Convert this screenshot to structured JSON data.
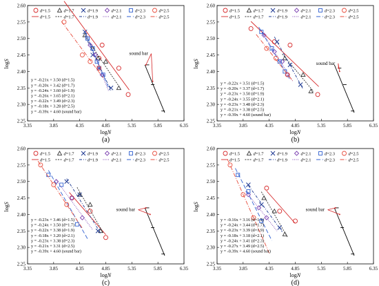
{
  "series_styles": [
    {
      "name": "d=1.5",
      "color": "#d62728",
      "marker": "circle",
      "line_dash": "none"
    },
    {
      "name": "d=1.7",
      "color": "#333333",
      "marker": "triangle",
      "line_dash": "2,1.5"
    },
    {
      "name": "d=1.9",
      "color": "#1f3a93",
      "marker": "x",
      "line_dash": "4,2,1,2"
    },
    {
      "name": "d=2.1",
      "color": "#7b3fb0",
      "marker": "diamond",
      "line_dash": "1,1.5"
    },
    {
      "name": "d=2.3",
      "color": "#3060d0",
      "marker": "square",
      "line_dash": "6,3"
    },
    {
      "name": "d=2.5",
      "color": "#e74c3c",
      "marker": "circle",
      "line_dash": "6,2,1,2"
    }
  ],
  "sound_bar": {
    "color": "#000000",
    "label": "sound bar"
  },
  "legend_marker_labels": [
    "d=1.5",
    "d=1.7",
    "d=1.9",
    "d=2.1",
    "d=2.3",
    "d=2.5"
  ],
  "legend_line_labels": [
    "d=1.5",
    "d=1.7",
    "d=1.9",
    "d=2.1",
    "d=2.3",
    "d=2.5"
  ],
  "chart_data": [
    {
      "type": "scatter",
      "panel_label": "(a)",
      "xlabel": "logN",
      "ylabel": "logS",
      "xlim": [
        3.35,
        6.35
      ],
      "ylim": [
        2.25,
        2.6
      ],
      "xticks": [
        "3.35",
        "3.85",
        "4.35",
        "4.85",
        "5.35",
        "5.85",
        "6.35"
      ],
      "yticks": [
        "2.25",
        "2.30",
        "2.35",
        "2.40",
        "2.45",
        "2.50",
        "2.55",
        "2.60"
      ],
      "equations": [
        "y = -0.21x + 3.50 (d=1.5)",
        "y = -0.20x + 3.42 (d=1.7)",
        "y = -0.24x + 3.60 (d=1.9)",
        "y = -0.26x + 3.65 (d=2.1)",
        "y = -0.22x + 3.49 (d=2.3)",
        "y = -0.18x + 3.28 (d=2.5)",
        "y = -0.39x + 4.60 (sound bar)"
      ],
      "series": [
        {
          "name": "d=1.5",
          "points": [
            [
              4.78,
              2.48
            ],
            [
              4.72,
              2.44
            ],
            [
              5.1,
              2.41
            ],
            [
              5.28,
              2.33
            ]
          ],
          "fit": [
            4.05,
            5.3
          ]
        },
        {
          "name": "d=1.7",
          "points": [
            [
              4.45,
              2.51
            ],
            [
              4.6,
              2.47
            ],
            [
              4.7,
              2.44
            ],
            [
              4.85,
              2.43
            ],
            [
              5.1,
              2.35
            ]
          ],
          "fit": [
            4.45,
            5.1
          ]
        },
        {
          "name": "d=1.9",
          "points": [
            [
              4.45,
              2.52
            ],
            [
              4.6,
              2.45
            ],
            [
              4.72,
              2.41
            ],
            [
              4.95,
              2.35
            ]
          ],
          "fit": [
            4.45,
            4.95
          ]
        },
        {
          "name": "d=2.1",
          "points": [
            [
              4.55,
              2.48
            ],
            [
              4.65,
              2.45
            ],
            [
              4.72,
              2.41
            ],
            [
              4.78,
              2.39
            ]
          ],
          "fit": [
            4.45,
            4.9
          ]
        },
        {
          "name": "d=2.3",
          "points": [
            [
              4.5,
              2.5
            ],
            [
              4.6,
              2.47
            ],
            [
              4.68,
              2.43
            ],
            [
              4.8,
              2.39
            ]
          ],
          "fit": [
            4.45,
            4.9
          ]
        },
        {
          "name": "d=2.5",
          "points": [
            [
              4.05,
              2.55
            ],
            [
              4.4,
              2.45
            ],
            [
              4.55,
              2.43
            ],
            [
              4.72,
              2.41
            ]
          ],
          "fit": [
            4.0,
            4.8
          ]
        }
      ],
      "sound_bar_points": [
        [
          5.65,
          2.42
        ],
        [
          5.75,
          2.36
        ],
        [
          5.95,
          2.28
        ]
      ],
      "sound_bar_label_at": [
        5.3,
        2.45
      ],
      "sound_bar_arrow_to": [
        [
          5.62,
          2.42
        ],
        [
          5.75,
          2.37
        ]
      ],
      "sound_bar_fit": [
        5.6,
        5.98
      ]
    },
    {
      "type": "scatter",
      "panel_label": "(b)",
      "xlabel": "logN",
      "ylabel": "logS",
      "xlim": [
        3.35,
        6.35
      ],
      "ylim": [
        2.25,
        2.6
      ],
      "xticks": [
        "3.35",
        "3.85",
        "4.35",
        "4.85",
        "5.35",
        "5.85",
        "6.35"
      ],
      "yticks": [
        "2.25",
        "2.30",
        "2.35",
        "2.40",
        "2.45",
        "2.50",
        "2.55",
        "2.60"
      ],
      "equations": [
        "y = -0.22x + 3.51 (d=1.5)",
        "y = -0.20x + 3.37 (d=1.7)",
        "y = -0.23x + 3.50 (d=1.9)",
        "y = -0.24x + 3.55 (d=2.1)",
        "y = -0.23x + 3.48 (d=2.3)",
        "y = -0.21x + 3.38 (d=2.5)",
        "y = -0.39x + 4.60 (sound bar)"
      ],
      "series": [
        {
          "name": "d=1.5",
          "points": [
            [
              4.0,
              2.53
            ],
            [
              4.45,
              2.49
            ],
            [
              4.75,
              2.48
            ],
            [
              5.28,
              2.33
            ]
          ],
          "fit": [
            4.0,
            5.3
          ]
        },
        {
          "name": "d=1.7",
          "points": [
            [
              4.65,
              2.44
            ],
            [
              5.0,
              2.39
            ],
            [
              5.15,
              2.34
            ]
          ],
          "fit": [
            4.6,
            5.2
          ]
        },
        {
          "name": "d=1.9",
          "points": [
            [
              4.5,
              2.49
            ],
            [
              4.75,
              2.42
            ],
            [
              4.95,
              2.36
            ]
          ],
          "fit": [
            4.45,
            5.0
          ]
        },
        {
          "name": "d=2.1",
          "points": [
            [
              4.25,
              2.51
            ],
            [
              4.45,
              2.46
            ],
            [
              4.6,
              2.43
            ],
            [
              4.7,
              2.39
            ]
          ],
          "fit": [
            4.2,
            4.8
          ]
        },
        {
          "name": "d=2.3",
          "points": [
            [
              4.2,
              2.52
            ],
            [
              4.4,
              2.47
            ],
            [
              4.55,
              2.43
            ],
            [
              4.65,
              2.4
            ]
          ],
          "fit": [
            4.15,
            4.75
          ]
        },
        {
          "name": "d=2.5",
          "points": [
            [
              4.3,
              2.47
            ],
            [
              4.48,
              2.44
            ],
            [
              4.7,
              2.39
            ]
          ],
          "fit": [
            4.1,
            4.8
          ]
        }
      ],
      "sound_bar_points": [
        [
          5.7,
          2.41
        ],
        [
          5.8,
          2.36
        ],
        [
          5.95,
          2.28
        ]
      ],
      "sound_bar_label_at": [
        5.25,
        2.42
      ],
      "sound_bar_arrow_to": [
        [
          5.68,
          2.41
        ],
        [
          5.7,
          2.4
        ]
      ],
      "sound_bar_fit": [
        5.6,
        5.98
      ]
    },
    {
      "type": "scatter",
      "panel_label": "(c)",
      "xlabel": "logN",
      "ylabel": "logS",
      "xlim": [
        3.35,
        6.35
      ],
      "ylim": [
        2.25,
        2.6
      ],
      "xticks": [
        "3.35",
        "3.85",
        "4.35",
        "4.85",
        "5.35",
        "5.85",
        "6.35"
      ],
      "yticks": [
        "2.25",
        "2.30",
        "2.35",
        "2.40",
        "2.45",
        "2.50",
        "2.55",
        "2.60"
      ],
      "equations": [
        "y = -0.23x + 3.46 (d=1.5)",
        "y = -0.24x + 3.50 (d=1.7)",
        "y = -0.22x + 3.38 (d=1.9)",
        "y = -0.18x + 3.20 (d=2.1)",
        "y = -0.23x + 3.38 (d=2.3)",
        "y = -0.21x + 3.31 (d=2.5)",
        "y = -0.39x + 4.60 (sound bar)"
      ],
      "series": [
        {
          "name": "d=1.5",
          "points": [
            [
              4.2,
              2.45
            ],
            [
              4.55,
              2.41
            ],
            [
              4.85,
              2.33
            ]
          ],
          "fit": [
            4.15,
            4.85
          ]
        },
        {
          "name": "d=1.7",
          "points": [
            [
              4.35,
              2.46
            ],
            [
              4.55,
              2.43
            ],
            [
              4.75,
              2.35
            ]
          ],
          "fit": [
            4.3,
            4.8
          ]
        },
        {
          "name": "d=1.9",
          "points": [
            [
              4.1,
              2.5
            ],
            [
              4.35,
              2.46
            ],
            [
              4.7,
              2.35
            ]
          ],
          "fit": [
            4.1,
            4.75
          ]
        },
        {
          "name": "d=2.1",
          "points": [
            [
              3.9,
              2.5
            ],
            [
              4.2,
              2.45
            ],
            [
              4.4,
              2.39
            ]
          ],
          "fit": [
            3.9,
            4.6
          ]
        },
        {
          "name": "d=2.3",
          "points": [
            [
              3.75,
              2.52
            ],
            [
              4.0,
              2.49
            ],
            [
              4.3,
              2.37
            ]
          ],
          "fit": [
            3.75,
            4.5
          ]
        },
        {
          "name": "d=2.5",
          "points": [
            [
              3.6,
              2.55
            ],
            [
              3.85,
              2.49
            ],
            [
              4.1,
              2.43
            ]
          ],
          "fit": [
            3.55,
            4.4
          ]
        }
      ],
      "sound_bar_points": [
        [
          5.65,
          2.42
        ],
        [
          5.75,
          2.36
        ],
        [
          5.95,
          2.28
        ]
      ],
      "sound_bar_label_at": [
        5.05,
        2.41
      ],
      "sound_bar_arrow_to": [
        [
          5.62,
          2.42
        ],
        [
          5.7,
          2.4
        ]
      ],
      "sound_bar_fit": [
        5.6,
        5.98
      ]
    },
    {
      "type": "scatter",
      "panel_label": "(d)",
      "xlabel": "logN",
      "ylabel": "logS",
      "xlim": [
        3.35,
        6.35
      ],
      "ylim": [
        2.25,
        2.6
      ],
      "xticks": [
        "3.35",
        "3.85",
        "4.35",
        "4.85",
        "5.35",
        "5.85",
        "6.35"
      ],
      "yticks": [
        "2.25",
        "2.30",
        "2.35",
        "2.40",
        "2.45",
        "2.50",
        "2.55",
        "2.60"
      ],
      "equations": [
        "y = -0.16x + 3.16 (d=1.5)",
        "y = -0.24x + 3.44 (d=1.7)",
        "y = -0.23x + 3.39 (d=1.9)",
        "y = -0.18x + 3.18 (d=2.1)",
        "y = -0.24x + 3.41 (d=2.3)",
        "y = -0.27x + 3.49 (d=2.5)",
        "y = -0.39x + 4.60 (sound bar)"
      ],
      "series": [
        {
          "name": "d=1.5",
          "points": [
            [
              4.3,
              2.48
            ],
            [
              4.55,
              2.41
            ],
            [
              4.85,
              2.38
            ]
          ],
          "fit": [
            4.3,
            4.85
          ]
        },
        {
          "name": "d=1.7",
          "points": [
            [
              4.25,
              2.45
            ],
            [
              4.45,
              2.41
            ],
            [
              4.65,
              2.34
            ]
          ],
          "fit": [
            4.2,
            4.7
          ]
        },
        {
          "name": "d=1.9",
          "points": [
            [
              3.95,
              2.49
            ],
            [
              4.2,
              2.43
            ],
            [
              4.55,
              2.36
            ]
          ],
          "fit": [
            3.95,
            4.6
          ]
        },
        {
          "name": "d=2.1",
          "points": [
            [
              3.95,
              2.46
            ],
            [
              4.15,
              2.42
            ],
            [
              4.3,
              2.39
            ]
          ],
          "fit": [
            3.9,
            4.5
          ]
        },
        {
          "name": "d=2.3",
          "points": [
            [
              3.75,
              2.52
            ],
            [
              3.95,
              2.47
            ],
            [
              4.2,
              2.38
            ]
          ],
          "fit": [
            3.7,
            4.4
          ]
        },
        {
          "name": "d=2.5",
          "points": [
            [
              3.6,
              2.55
            ],
            [
              3.85,
              2.46
            ],
            [
              4.05,
              2.39
            ]
          ],
          "fit": [
            3.55,
            4.35
          ]
        }
      ],
      "sound_bar_points": [
        [
          5.65,
          2.42
        ],
        [
          5.75,
          2.36
        ],
        [
          5.95,
          2.28
        ]
      ],
      "sound_bar_label_at": [
        5.05,
        2.41
      ],
      "sound_bar_arrow_to": [
        [
          5.62,
          2.42
        ],
        [
          5.7,
          2.4
        ]
      ],
      "sound_bar_fit": [
        5.6,
        5.98
      ]
    }
  ]
}
